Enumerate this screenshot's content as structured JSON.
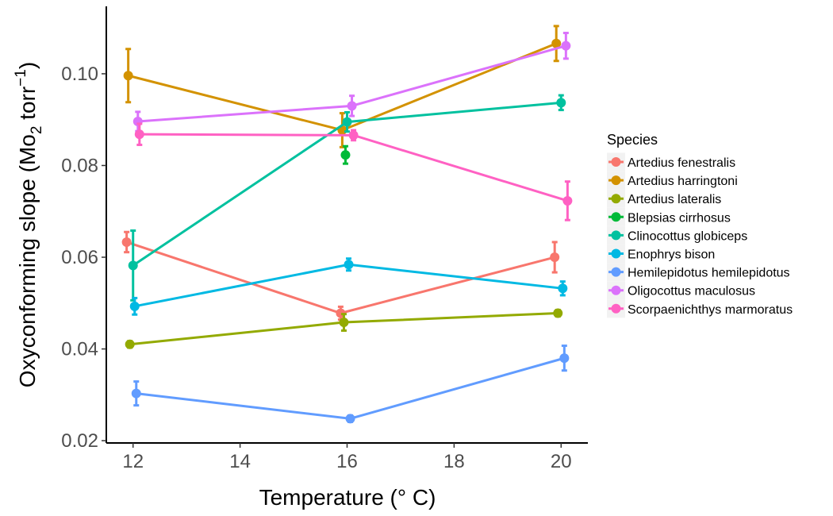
{
  "chart_data": {
    "type": "line",
    "x": [
      12,
      16,
      20
    ],
    "xlim": [
      11.5,
      20.5
    ],
    "ylim": [
      0.0195,
      0.1147
    ],
    "xticks": [
      12,
      14,
      16,
      18,
      20
    ],
    "yticks": [
      0.02,
      0.04,
      0.06,
      0.08,
      0.1
    ],
    "xtick_labels": [
      "12",
      "14",
      "16",
      "18",
      "20"
    ],
    "ytick_labels": [
      "0.02",
      "0.04",
      "0.06",
      "0.08",
      "0.10"
    ],
    "xlabel": "Temperature (° C)",
    "ylabel_main": "Oxyconforming slope (Mo",
    "ylabel_sub": "2",
    "ylabel_unit": " torr",
    "ylabel_sup": "−1",
    "ylabel_close": ")",
    "grid": false,
    "legend_title": "Species",
    "legend_position": "right",
    "series": [
      {
        "name": "Artedius fenestralis",
        "color": "#F8766D",
        "x": [
          12,
          16,
          20
        ],
        "values": [
          0.0633,
          0.0478,
          0.06
        ],
        "err": [
          0.0022,
          0.0014,
          0.0033
        ]
      },
      {
        "name": "Artedius harringtoni",
        "color": "#D39200",
        "x": [
          12,
          16,
          20
        ],
        "values": [
          0.0996,
          0.0877,
          0.1066
        ],
        "err": [
          0.0058,
          0.0037,
          0.0038
        ]
      },
      {
        "name": "Artedius lateralis",
        "color": "#93AA00",
        "x": [
          12,
          16,
          20
        ],
        "values": [
          0.041,
          0.0458,
          0.0478
        ],
        "err": [
          0.0007,
          0.0018,
          0.0007
        ]
      },
      {
        "name": "Blepsias cirrhosus",
        "color": "#00BA38",
        "x": [
          16
        ],
        "values": [
          0.0823
        ],
        "err": [
          0.0019
        ]
      },
      {
        "name": "Clinocottus globiceps",
        "color": "#00C19F",
        "x": [
          12,
          16,
          20
        ],
        "values": [
          0.0582,
          0.0895,
          0.0937
        ],
        "err": [
          0.0076,
          0.0021,
          0.0016
        ]
      },
      {
        "name": "Enophrys bison",
        "color": "#00B9E3",
        "x": [
          12,
          16,
          20
        ],
        "values": [
          0.0493,
          0.0584,
          0.0532
        ],
        "err": [
          0.0018,
          0.0013,
          0.0015
        ]
      },
      {
        "name": "Hemilepidotus hemilepidotus",
        "color": "#619CFF",
        "x": [
          12,
          16,
          20
        ],
        "values": [
          0.0303,
          0.0248,
          0.038
        ],
        "err": [
          0.0026,
          0.0007,
          0.0027
        ]
      },
      {
        "name": "Oligocottus maculosus",
        "color": "#DB72FB",
        "x": [
          12,
          16,
          20
        ],
        "values": [
          0.0896,
          0.093,
          0.1061
        ],
        "err": [
          0.0021,
          0.0022,
          0.0028
        ]
      },
      {
        "name": "Scorpaenichthys marmoratus",
        "color": "#FF61C3",
        "x": [
          12,
          16,
          20
        ],
        "values": [
          0.0868,
          0.0866,
          0.0723
        ],
        "err": [
          0.0023,
          0.0011,
          0.0042
        ]
      }
    ]
  }
}
